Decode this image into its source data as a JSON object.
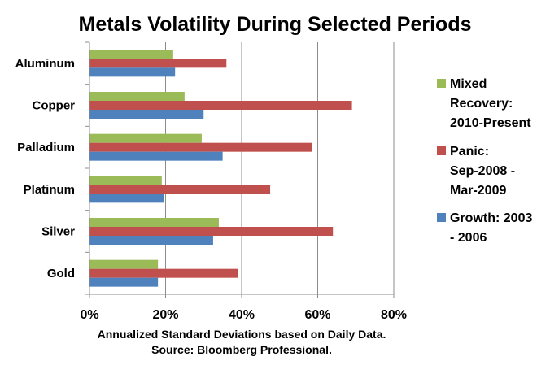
{
  "chart_data": {
    "type": "bar",
    "orientation": "horizontal",
    "title": "Metals Volatility During Selected Periods",
    "xlabel_lines": [
      "Annualized Standard Deviations based on Daily Data.",
      "Source:  Bloomberg Professional."
    ],
    "ylabel": "",
    "categories": [
      "Aluminum",
      "Copper",
      "Palladium",
      "Platinum",
      "Silver",
      "Gold"
    ],
    "xlim": [
      0,
      80
    ],
    "xticks": [
      0,
      20,
      40,
      60,
      80
    ],
    "xtick_labels": [
      "0%",
      "20%",
      "40%",
      "60%",
      "80%"
    ],
    "grid": "vertical",
    "legend_position": "right",
    "series": [
      {
        "name": "Mixed Recovery: 2010-Present",
        "legend_lines": [
          "Mixed",
          "Recovery:",
          "2010-Present"
        ],
        "color": "#9bbb59",
        "values": [
          22,
          25,
          29.5,
          19,
          34,
          18
        ]
      },
      {
        "name": "Panic: Sep-2008 - Mar-2009",
        "legend_lines": [
          "Panic:",
          "Sep-2008 -",
          "Mar-2009"
        ],
        "color": "#c0504d",
        "values": [
          36,
          69,
          58.5,
          47.5,
          64,
          39
        ]
      },
      {
        "name": "Growth: 2003 - 2006",
        "legend_lines": [
          "Growth: 2003",
          "- 2006"
        ],
        "color": "#4f81bd",
        "values": [
          22.5,
          30,
          35,
          19.5,
          32.5,
          18
        ]
      }
    ]
  }
}
